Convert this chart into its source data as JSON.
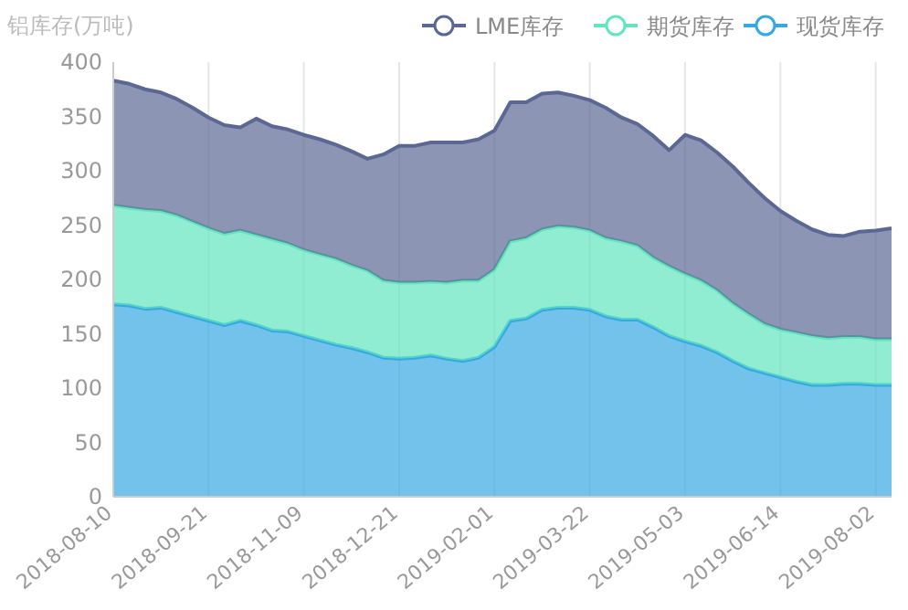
{
  "chart_data": {
    "type": "area",
    "stacked": true,
    "ylabel": "铝库存(万吨)",
    "categories": [
      "2018-08-10",
      null,
      null,
      null,
      null,
      null,
      "2018-09-21",
      null,
      null,
      null,
      null,
      null,
      "2018-11-09",
      null,
      null,
      null,
      null,
      null,
      "2018-12-21",
      null,
      null,
      null,
      null,
      null,
      "2019-02-01",
      null,
      null,
      null,
      null,
      null,
      "2019-03-22",
      null,
      null,
      null,
      null,
      null,
      "2019-05-03",
      null,
      null,
      null,
      null,
      null,
      "2019-06-14",
      null,
      null,
      null,
      null,
      null,
      "2019-08-02",
      null
    ],
    "ylim": [
      0,
      400
    ],
    "yticks": [
      0,
      50,
      100,
      150,
      200,
      250,
      300,
      350,
      400
    ],
    "grid": "x",
    "legend": "top right",
    "marker": "none",
    "line_style": "solid",
    "series": [
      {
        "name": "现货库存",
        "color": "#36a8e3",
        "values": [
          177,
          176,
          173,
          174,
          170,
          166,
          162,
          158,
          162,
          158,
          153,
          152,
          148,
          144,
          140,
          137,
          133,
          128,
          127,
          128,
          130,
          127,
          125,
          128,
          138,
          162,
          164,
          172,
          174,
          174,
          172,
          166,
          163,
          163,
          156,
          148,
          143,
          139,
          133,
          125,
          118,
          114,
          110,
          106,
          103,
          103,
          104,
          104,
          103,
          103
        ]
      },
      {
        "name": "期货库存",
        "color": "#62e6bd",
        "values": [
          91,
          90,
          91,
          89,
          89,
          87,
          85,
          84,
          83,
          83,
          84,
          81,
          79,
          79,
          79,
          76,
          75,
          71,
          70,
          69,
          68,
          70,
          74,
          71,
          71,
          73,
          74,
          74,
          75,
          74,
          73,
          72,
          72,
          68,
          64,
          64,
          62,
          60,
          57,
          53,
          50,
          45,
          44,
          45,
          45,
          43,
          43,
          43,
          42,
          42
        ]
      },
      {
        "name": "LME库存",
        "color": "#5b6894",
        "values": [
          115,
          114,
          111,
          109,
          107,
          105,
          102,
          100,
          95,
          107,
          104,
          105,
          106,
          106,
          105,
          105,
          103,
          116,
          126,
          126,
          128,
          129,
          127,
          130,
          128,
          128,
          125,
          125,
          123,
          121,
          120,
          120,
          114,
          112,
          112,
          107,
          128,
          129,
          127,
          126,
          121,
          116,
          109,
          103,
          98,
          95,
          93,
          97,
          100,
          102
        ]
      }
    ]
  }
}
